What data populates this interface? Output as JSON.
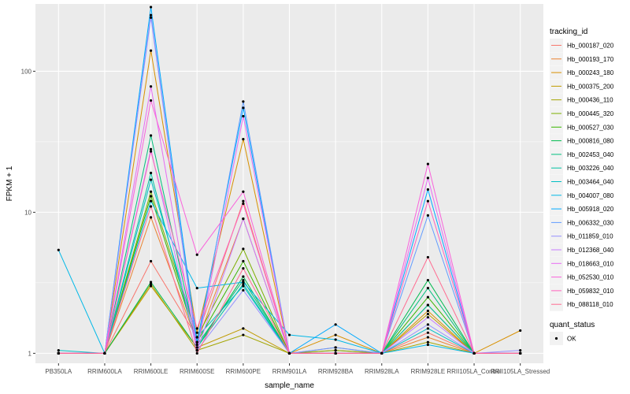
{
  "chart_data": {
    "type": "line",
    "xlabel": "sample_name",
    "ylabel": "FPKM + 1",
    "y_scale": "log10",
    "ylim": [
      0.85,
      300
    ],
    "y_ticks": [
      {
        "value": 1,
        "label": "1"
      },
      {
        "value": 10,
        "label": "10"
      },
      {
        "value": 100,
        "label": "100"
      }
    ],
    "grid": true,
    "legend_position": "right",
    "colors": {
      "panel_background": "#ebebeb",
      "grid": "#ffffff",
      "point": "#000000"
    },
    "categories": [
      "PB350LA",
      "RRIM600LA",
      "RRIM600LE",
      "RRIM600SE",
      "RRIM600PE",
      "RRIM901LA",
      "RRIM928BA",
      "RRIM928LA",
      "RRIM928LE",
      "RRII105LA_Control",
      "RRII105LA_Stressed"
    ],
    "color_legend": {
      "title": "tracking_id"
    },
    "shape_legend": {
      "title": "quant_status",
      "items": [
        {
          "label": "OK",
          "shape": "circle"
        }
      ]
    },
    "series": [
      {
        "name": "Hb_000187_020",
        "color": "#f8766d",
        "values": [
          1.0,
          1.0,
          4.5,
          1.3,
          12.0,
          1.0,
          1.1,
          1.0,
          1.4,
          1.0,
          1.0
        ]
      },
      {
        "name": "Hb_000193_170",
        "color": "#ea8331",
        "values": [
          1.0,
          1.0,
          9.2,
          1.2,
          9.0,
          1.0,
          1.05,
          1.0,
          1.3,
          1.0,
          1.0
        ]
      },
      {
        "name": "Hb_000243_180",
        "color": "#d89000",
        "values": [
          1.0,
          1.0,
          140.0,
          1.4,
          33.0,
          1.0,
          1.35,
          1.0,
          2.0,
          1.0,
          1.45
        ]
      },
      {
        "name": "Hb_000375_200",
        "color": "#c09b00",
        "values": [
          1.0,
          1.0,
          3.0,
          1.1,
          1.5,
          1.0,
          1.0,
          1.0,
          1.9,
          1.0,
          1.0
        ]
      },
      {
        "name": "Hb_000436_110",
        "color": "#a3a500",
        "values": [
          1.0,
          1.0,
          3.1,
          1.05,
          1.35,
          1.0,
          1.0,
          1.0,
          1.2,
          1.0,
          1.0
        ]
      },
      {
        "name": "Hb_000445_320",
        "color": "#7cae00",
        "values": [
          1.0,
          1.0,
          14.0,
          1.3,
          5.5,
          1.0,
          1.05,
          1.0,
          2.2,
          1.0,
          1.0
        ]
      },
      {
        "name": "Hb_000527_030",
        "color": "#39b600",
        "values": [
          1.0,
          1.0,
          13.0,
          1.2,
          4.5,
          1.0,
          1.0,
          1.0,
          2.5,
          1.0,
          1.0
        ]
      },
      {
        "name": "Hb_000816_080",
        "color": "#00bb4e",
        "values": [
          1.0,
          1.0,
          3.2,
          1.1,
          3.5,
          1.0,
          1.0,
          1.0,
          3.3,
          1.0,
          1.0
        ]
      },
      {
        "name": "Hb_002453_040",
        "color": "#00bf7d",
        "values": [
          1.0,
          1.0,
          35.0,
          1.15,
          3.3,
          1.0,
          1.0,
          1.0,
          2.9,
          1.0,
          1.0
        ]
      },
      {
        "name": "Hb_003226_040",
        "color": "#00c1a3",
        "values": [
          1.0,
          1.0,
          19.0,
          1.1,
          3.1,
          1.0,
          1.0,
          1.0,
          2.2,
          1.0,
          1.0
        ]
      },
      {
        "name": "Hb_003464_040",
        "color": "#00bfc4",
        "values": [
          1.05,
          1.0,
          17.0,
          1.3,
          3.0,
          1.0,
          1.0,
          1.0,
          1.5,
          1.0,
          1.0
        ]
      },
      {
        "name": "Hb_004007_080",
        "color": "#00b8e7",
        "values": [
          5.4,
          1.0,
          12.0,
          2.9,
          3.2,
          1.35,
          1.25,
          1.0,
          1.15,
          1.0,
          1.0
        ]
      },
      {
        "name": "Hb_005918_020",
        "color": "#00a9ff",
        "values": [
          1.0,
          1.0,
          285.0,
          1.2,
          55.0,
          1.0,
          1.6,
          1.0,
          14.5,
          1.0,
          1.0
        ]
      },
      {
        "name": "Hb_006332_030",
        "color": "#619cff",
        "values": [
          1.0,
          1.0,
          250.0,
          1.1,
          61.0,
          1.0,
          1.1,
          1.0,
          9.5,
          1.0,
          1.0
        ]
      },
      {
        "name": "Hb_011859_010",
        "color": "#9590ff",
        "values": [
          1.0,
          1.0,
          240.0,
          1.05,
          2.8,
          1.0,
          1.0,
          1.0,
          1.6,
          1.0,
          1.05
        ]
      },
      {
        "name": "Hb_012368_040",
        "color": "#c77cff",
        "values": [
          1.0,
          1.0,
          28.0,
          1.05,
          9.0,
          1.0,
          1.0,
          1.0,
          1.8,
          1.0,
          1.0
        ]
      },
      {
        "name": "Hb_018663_010",
        "color": "#e76bf3",
        "values": [
          1.0,
          1.0,
          78.0,
          1.05,
          48.0,
          1.0,
          1.0,
          1.0,
          17.5,
          1.0,
          1.0
        ]
      },
      {
        "name": "Hb_052530_010",
        "color": "#fa62db",
        "values": [
          1.0,
          1.0,
          62.0,
          5.0,
          14.0,
          1.0,
          1.0,
          1.0,
          22.0,
          1.0,
          1.0
        ]
      },
      {
        "name": "Hb_059832_010",
        "color": "#ff62bc",
        "values": [
          1.0,
          1.0,
          27.0,
          1.5,
          11.5,
          1.0,
          1.0,
          1.0,
          12.0,
          1.0,
          1.0
        ]
      },
      {
        "name": "Hb_088118_010",
        "color": "#ff6c91",
        "values": [
          1.0,
          1.0,
          11.0,
          1.0,
          4.0,
          1.0,
          1.0,
          1.0,
          4.8,
          1.0,
          1.0
        ]
      }
    ]
  }
}
